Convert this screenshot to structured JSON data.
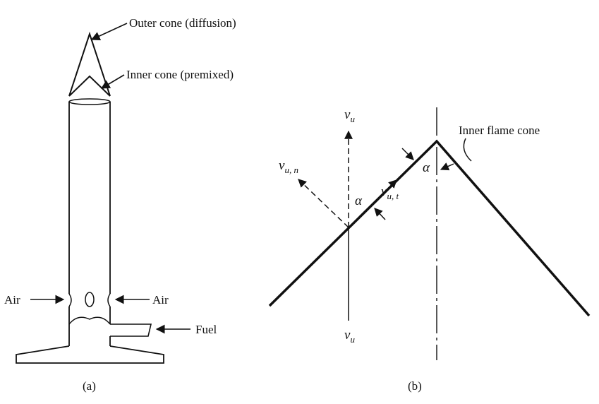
{
  "panel_a": {
    "caption": "(a)",
    "labels": {
      "outer_cone": "Outer cone (diffusion)",
      "inner_cone": "Inner cone (premixed)",
      "air_left": "Air",
      "air_right": "Air",
      "fuel": "Fuel"
    }
  },
  "panel_b": {
    "caption": "(b)",
    "labels": {
      "inner_flame_cone": "Inner flame cone",
      "alpha_top": "α",
      "alpha_mid": "α",
      "vu_top": {
        "base": "v",
        "sub": "u"
      },
      "vu_bottom": {
        "base": "v",
        "sub": "u"
      },
      "vun": {
        "base": "v",
        "sub": "u, n"
      },
      "vut": {
        "base": "v",
        "sub": "u, t"
      }
    }
  }
}
